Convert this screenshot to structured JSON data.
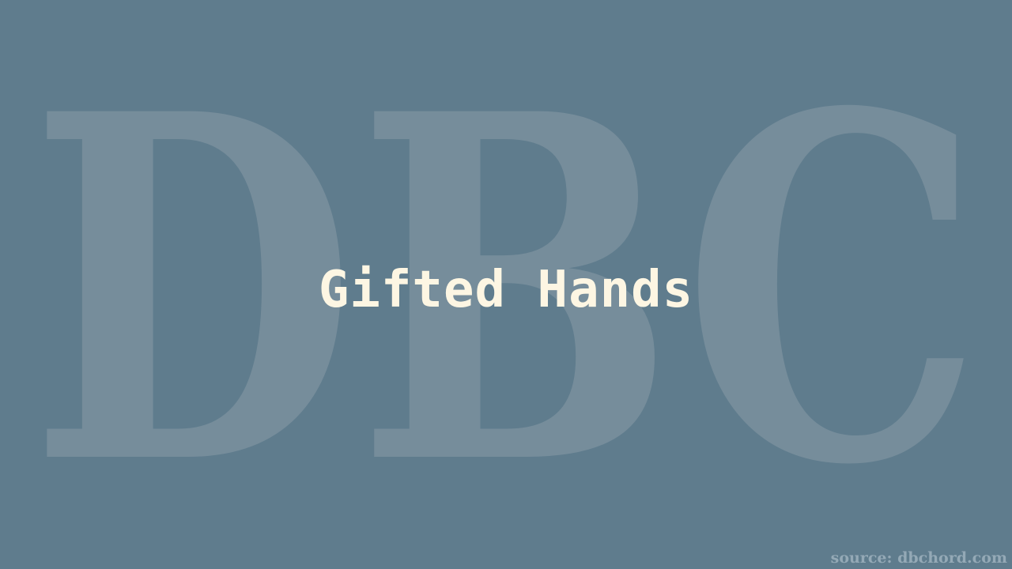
{
  "colors": {
    "background": "#5f7c8d",
    "watermark": "#768d9b",
    "title": "#fdf6e3",
    "source": "#94a9b6"
  },
  "watermark": {
    "text": "DBC"
  },
  "title": "Gifted Hands",
  "source": "source: dbchord.com"
}
